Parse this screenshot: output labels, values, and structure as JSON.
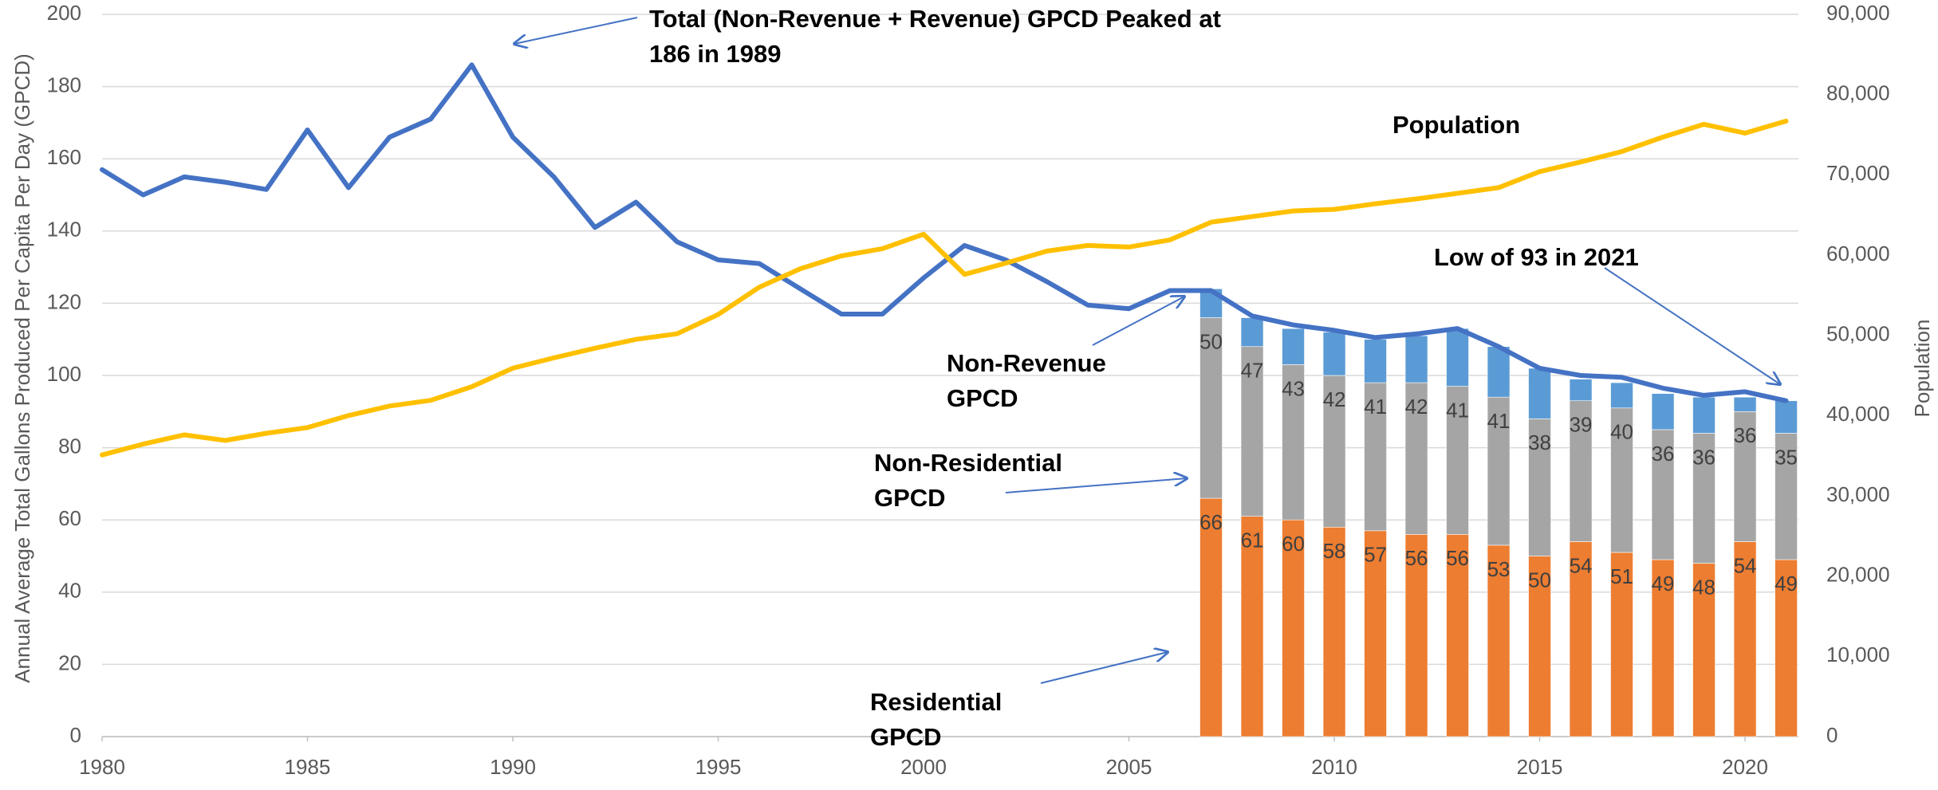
{
  "chart_data": {
    "type": "combo",
    "y_label": "Annual Average Total Gallons Produced Per Capita Per Day (GPCD)",
    "y2_label": "Population",
    "x": [
      1980,
      1981,
      1982,
      1983,
      1984,
      1985,
      1986,
      1987,
      1988,
      1989,
      1990,
      1991,
      1992,
      1993,
      1994,
      1995,
      1996,
      1997,
      1998,
      1999,
      2000,
      2001,
      2002,
      2003,
      2004,
      2005,
      2006,
      2007,
      2008,
      2009,
      2010,
      2011,
      2012,
      2013,
      2014,
      2015,
      2016,
      2017,
      2018,
      2019,
      2020,
      2021
    ],
    "xlim": [
      1980,
      2021.3
    ],
    "xticks": [
      1980,
      1985,
      1990,
      1995,
      2000,
      2005,
      2010,
      2015,
      2020
    ],
    "ylim": [
      0,
      200
    ],
    "yticks": [
      0,
      20,
      40,
      60,
      80,
      100,
      120,
      140,
      160,
      180,
      200
    ],
    "y2lim": [
      0,
      90000
    ],
    "y2ticks": [
      0,
      {
        "value": 10000,
        "label": "10,000"
      },
      {
        "value": 20000,
        "label": "20,000"
      },
      {
        "value": 30000,
        "label": "30,000"
      },
      {
        "value": 40000,
        "label": "40,000"
      },
      {
        "value": 50000,
        "label": "50,000"
      },
      {
        "value": 60000,
        "label": "60,000"
      },
      {
        "value": 70000,
        "label": "70,000"
      },
      {
        "value": 80000,
        "label": "80,000"
      },
      {
        "value": 90000,
        "label": "90,000"
      }
    ],
    "grid": true,
    "series": [
      {
        "type": "bar",
        "color": "#ed7d31",
        "labels": true,
        "x": [
          2007,
          2008,
          2009,
          2010,
          2011,
          2012,
          2013,
          2014,
          2015,
          2016,
          2017,
          2018,
          2019,
          2020,
          2021
        ],
        "values": [
          66,
          61,
          60,
          58,
          57,
          56,
          56,
          53,
          50,
          54,
          51,
          49,
          48,
          54,
          49
        ]
      },
      {
        "type": "bar",
        "color": "#a5a5a5",
        "labels": true,
        "x": [
          2007,
          2008,
          2009,
          2010,
          2011,
          2012,
          2013,
          2014,
          2015,
          2016,
          2017,
          2018,
          2019,
          2020,
          2021
        ],
        "values": [
          50,
          47,
          43,
          42,
          41,
          42,
          41,
          41,
          38,
          39,
          40,
          36,
          36,
          36,
          35
        ]
      },
      {
        "type": "bar",
        "color": "#5b9bd5",
        "labels": false,
        "x": [
          2007,
          2008,
          2009,
          2010,
          2011,
          2012,
          2013,
          2014,
          2015,
          2016,
          2017,
          2018,
          2019,
          2020,
          2021
        ],
        "values": [
          8,
          8,
          10,
          12,
          12,
          13,
          16,
          14,
          14,
          6,
          7,
          10,
          10,
          4,
          9
        ]
      },
      {
        "type": "line",
        "color": "#4472c4",
        "values": [
          157,
          150,
          155,
          153.5,
          151.5,
          168,
          152,
          166,
          171,
          186,
          166,
          155,
          141,
          148,
          137,
          132,
          131,
          124,
          117,
          117,
          127,
          136,
          132,
          126,
          119.5,
          118.5,
          123.5,
          123.5,
          116.5,
          114,
          112.5,
          110.5,
          111.5,
          113,
          108,
          102,
          100,
          99.5,
          96.5,
          94.5,
          95.5,
          93
        ]
      },
      {
        "type": "line",
        "color": "#ffc000",
        "axis": "y2",
        "values": [
          35100,
          36450,
          37600,
          36900,
          37800,
          38500,
          40000,
          41200,
          41900,
          43600,
          45900,
          47200,
          48400,
          49500,
          50200,
          52600,
          56000,
          58300,
          59900,
          60800,
          62600,
          57600,
          59000,
          60500,
          61200,
          61000,
          61900,
          64100,
          64800,
          65500,
          65700,
          66400,
          67000,
          67700,
          68400,
          70400,
          71600,
          72900,
          74700,
          76300,
          75200,
          76700
        ]
      }
    ],
    "annotations": [
      {
        "lines": [
          "Total (Non-Revenue + Revenue) GPCD Peaked at",
          "186 in 1989"
        ]
      },
      {
        "lines": [
          "Population"
        ]
      },
      {
        "lines": [
          "Low of 93 in 2021"
        ]
      },
      {
        "lines": [
          "Non-Revenue",
          "GPCD"
        ]
      },
      {
        "lines": [
          "Non-Residential",
          "GPCD"
        ]
      },
      {
        "lines": [
          "Residential",
          "GPCD"
        ]
      }
    ]
  }
}
